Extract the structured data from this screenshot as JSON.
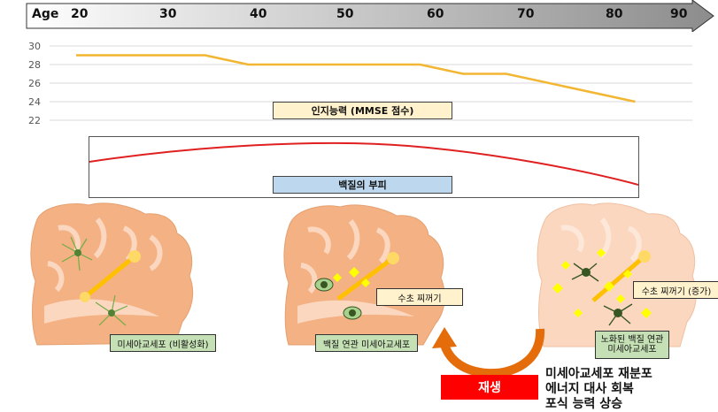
{
  "age_axis": {
    "title": "Age",
    "ticks": [
      "20",
      "30",
      "40",
      "50",
      "60",
      "70",
      "80",
      "90"
    ]
  },
  "chart_data": [
    {
      "type": "line",
      "x": [
        20,
        35,
        40,
        60,
        65,
        70,
        85
      ],
      "series": [
        {
          "values": [
            29,
            29,
            28,
            28,
            27,
            27,
            24
          ]
        }
      ],
      "yticks": [
        "30",
        "28",
        "26",
        "24",
        "22"
      ],
      "ylim": [
        22,
        30
      ],
      "xlim": [
        20,
        90
      ],
      "label": "인지능력 (MMSE 점수)",
      "color": "#f2b632",
      "grid": true
    }
  ],
  "white_matter": {
    "label": "백질의 부피",
    "curve_color": "#e02020"
  },
  "brains": {
    "brain1_label": "미세아교세포 (비활성화)",
    "brain2_label": "백질 연관 미세아교세포",
    "brain2_debris": "수초 찌꺼기",
    "brain3_label": "노화된 백질 연관\n미세아교세포",
    "brain3_debris": "수초 찌꺼기 (증가)"
  },
  "regen": {
    "label": "재생",
    "notes": [
      "미세아교세포 재분포",
      "에너지 대사 회복",
      "포식 능력 상승"
    ]
  },
  "colors": {
    "brain_fill": "#f4b183",
    "brain_light": "#fbd7c0",
    "arrow": "#e46c0a",
    "neuron": "#ffd966"
  }
}
